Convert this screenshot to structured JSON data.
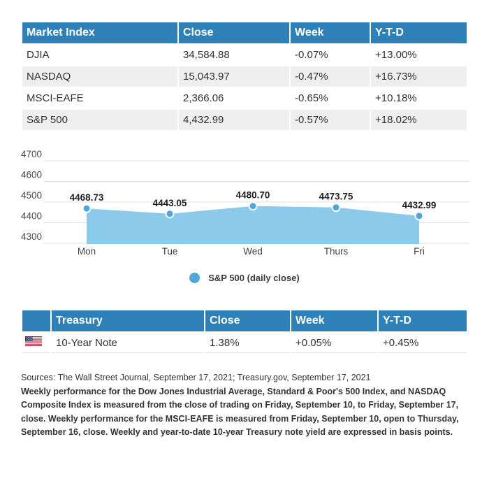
{
  "colors": {
    "header_blue": "#2E80B8",
    "row_alt_gray": "#EFEFEF",
    "area_fill": "#8CCAEC",
    "point_blue": "#4FA6DC",
    "grid_gray": "#E0E0E0"
  },
  "market_table": {
    "headers": [
      "Market Index",
      "Close",
      "Week",
      "Y-T-D"
    ],
    "rows": [
      {
        "index": "DJIA",
        "close": "34,584.88",
        "week": "-0.07%",
        "ytd": "+13.00%"
      },
      {
        "index": "NASDAQ",
        "close": "15,043.97",
        "week": "-0.47%",
        "ytd": "+16.73%"
      },
      {
        "index": "MSCI-EAFE",
        "close": "2,366.06",
        "week": "-0.65%",
        "ytd": "+10.18%"
      },
      {
        "index": "S&P 500",
        "close": "4,432.99",
        "week": "-0.57%",
        "ytd": "+18.02%"
      }
    ]
  },
  "chart_data": {
    "type": "area",
    "title": "",
    "series_name": "S&P 500",
    "legend": "S&P 500 (daily close)",
    "legend_position": "bottom",
    "x": [
      "Mon",
      "Tue",
      "Wed",
      "Thurs",
      "Fri"
    ],
    "values": [
      4468.73,
      4443.05,
      4480.7,
      4473.75,
      4432.99
    ],
    "point_labels": [
      "4468.73",
      "4443.05",
      "4480.70",
      "4473.75",
      "4432.99"
    ],
    "yticks": [
      4700,
      4600,
      4500,
      4400,
      4300
    ],
    "ylim": [
      4300,
      4750
    ],
    "grid": true
  },
  "treasury_table": {
    "headers": [
      "",
      "Treasury",
      "Close",
      "Week",
      "Y-T-D"
    ],
    "rows": [
      {
        "flag": "us-flag",
        "name": "10-Year Note",
        "close": "1.38%",
        "week": "+0.05%",
        "ytd": "+0.45%"
      }
    ]
  },
  "footnotes": {
    "sources": "Sources: The Wall Street Journal, September 17, 2021; Treasury.gov, September 17, 2021",
    "note": "Weekly performance for the Dow Jones Industrial Average, Standard & Poor's 500 Index, and NASDAQ Composite Index is measured from the close of trading on Friday, September 10, to Friday, September 17, close. Weekly performance for the MSCI-EAFE is measured from Friday, September 10, open to Thursday, September 16, close. Weekly and year-to-date 10-year Treasury note yield are expressed in basis points."
  }
}
